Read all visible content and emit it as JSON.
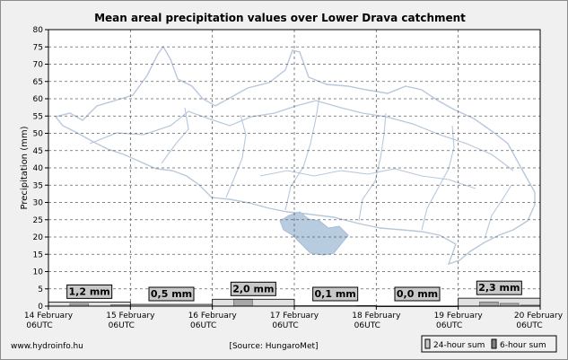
{
  "chart_data": {
    "type": "bar",
    "title": "Mean areal precipitation values over Lower Drava catchment",
    "ylabel": "Precipitation (mm)",
    "ylim": [
      0,
      80
    ],
    "yticks": [
      0,
      5,
      10,
      15,
      20,
      25,
      30,
      35,
      40,
      45,
      50,
      55,
      60,
      65,
      70,
      75,
      80
    ],
    "x_ticks": [
      {
        "day": "14 February",
        "time": "06UTC"
      },
      {
        "day": "15 February",
        "time": "06UTC"
      },
      {
        "day": "16 February",
        "time": "06UTC"
      },
      {
        "day": "17 February",
        "time": "06UTC"
      },
      {
        "day": "18 February",
        "time": "06UTC"
      },
      {
        "day": "19 February",
        "time": "06UTC"
      },
      {
        "day": "20 February",
        "time": "06UTC"
      }
    ],
    "series": [
      {
        "name": "24-hour sum",
        "color": "#c8c8c8",
        "values": [
          1.2,
          0.5,
          2.0,
          0.1,
          0.0,
          2.3
        ]
      },
      {
        "name": "6-hour sum",
        "color": "#7f7f7f",
        "values": [
          0.0,
          0.7,
          0.0,
          0.4,
          0.0,
          0.0,
          0.0,
          0.0,
          0.0,
          2.0,
          0.0,
          0.0,
          0.0,
          0.0,
          0.0,
          0.1,
          0.0,
          0.0,
          0.0,
          0.0,
          0.0,
          1.2,
          0.8,
          0.3
        ]
      }
    ],
    "data_labels": [
      "1,2 mm",
      "0,5 mm",
      "2,0 mm",
      "0,1 mm",
      "0,0 mm",
      "2,3 mm"
    ],
    "grid": true,
    "legend_position": "bottom-right"
  },
  "footer": {
    "site": "www.hydroinfo.hu",
    "source": "[Source: HungaroMet]"
  }
}
